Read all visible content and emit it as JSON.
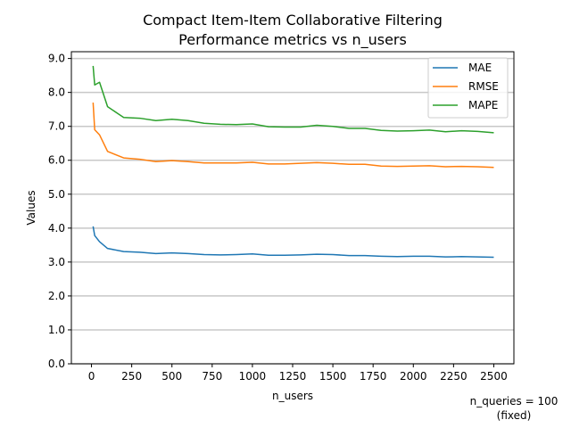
{
  "chart_data": {
    "type": "line",
    "title": "Compact Item-Item Collaborative Filtering",
    "subtitle": "Performance metrics vs n_users",
    "xlabel": "n_users",
    "ylabel": "Values",
    "xlim": [
      -125,
      2625
    ],
    "ylim": [
      0,
      9.2
    ],
    "xticks": [
      0,
      250,
      500,
      750,
      1000,
      1250,
      1500,
      1750,
      2000,
      2250,
      2500
    ],
    "xtick_labels": [
      "0",
      "250",
      "500",
      "750",
      "1000",
      "1250",
      "1500",
      "1750",
      "2000",
      "2250",
      "2500"
    ],
    "yticks": [
      0,
      1,
      2,
      3,
      4,
      5,
      6,
      7,
      8,
      9
    ],
    "ytick_labels": [
      "0.0",
      "1.0",
      "2.0",
      "3.0",
      "4.0",
      "5.0",
      "6.0",
      "7.0",
      "8.0",
      "9.0"
    ],
    "grid": "horizontal",
    "legend_position": "top-right",
    "x": [
      10,
      20,
      50,
      100,
      200,
      300,
      400,
      500,
      600,
      700,
      800,
      900,
      1000,
      1100,
      1200,
      1300,
      1400,
      1500,
      1600,
      1700,
      1800,
      1900,
      2000,
      2100,
      2200,
      2300,
      2400,
      2500
    ],
    "series": [
      {
        "name": "MAE",
        "color": "#1f77b4",
        "values": [
          4.05,
          3.78,
          3.6,
          3.4,
          3.31,
          3.29,
          3.25,
          3.27,
          3.25,
          3.22,
          3.21,
          3.22,
          3.24,
          3.2,
          3.2,
          3.21,
          3.23,
          3.22,
          3.19,
          3.19,
          3.17,
          3.16,
          3.17,
          3.17,
          3.15,
          3.16,
          3.15,
          3.14
        ]
      },
      {
        "name": "RMSE",
        "color": "#ff7f0e",
        "values": [
          7.7,
          6.9,
          6.75,
          6.26,
          6.07,
          6.03,
          5.96,
          5.99,
          5.96,
          5.92,
          5.92,
          5.92,
          5.94,
          5.89,
          5.89,
          5.91,
          5.93,
          5.91,
          5.88,
          5.88,
          5.83,
          5.82,
          5.83,
          5.84,
          5.81,
          5.82,
          5.81,
          5.79
        ]
      },
      {
        "name": "MAPE",
        "color": "#2ca02c",
        "values": [
          8.78,
          8.22,
          8.3,
          7.58,
          7.26,
          7.24,
          7.17,
          7.21,
          7.17,
          7.09,
          7.06,
          7.05,
          7.07,
          6.99,
          6.98,
          6.98,
          7.03,
          7.0,
          6.94,
          6.94,
          6.88,
          6.86,
          6.87,
          6.89,
          6.84,
          6.87,
          6.85,
          6.81
        ]
      }
    ],
    "annotation": [
      "n_queries = 100",
      "(fixed)"
    ]
  }
}
